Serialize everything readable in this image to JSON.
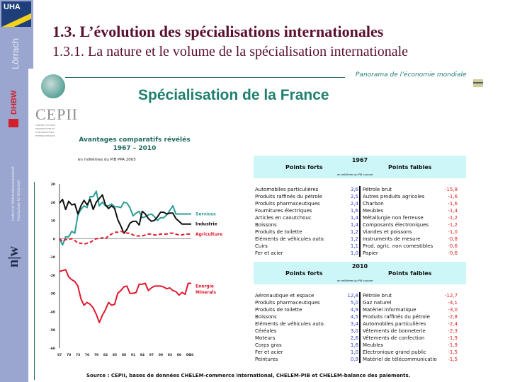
{
  "sidebar": {
    "uha_logo": "UHA",
    "lorrach": "Lörrach",
    "dhbw": "DHBW",
    "institute_line1": "Institut für Wirtschaftswissenschaft",
    "institute_line2": "Hochschule für Wirtschaft",
    "nw_logo": "n|w"
  },
  "header": {
    "title": "1.3. L’évolution des spécialisations internationales",
    "subtitle": "1.3.1. La nature et le volume de la spécialisation internationale"
  },
  "slide": {
    "cepii_logo": "CEPII",
    "cepii_small": "CENTRE D'ETUDES PROSPECTIVES ET D'INFORMATIONS INTERNATIONALES",
    "panorama": "Panorama de l’économie mondiale",
    "main_title": "Spécialisation de la France",
    "chart_title_line1": "Avantages comparatifs révélés",
    "chart_title_line2": "1967 – 2010",
    "chart_unit": "en millièmes du PIB PPA 2005",
    "source": "Source : CEPII, bases de données CHELEM-commerce international, CHELEM-PIB et CHELEM-balance des paiements."
  },
  "tables": [
    {
      "year": "1967",
      "strong_label": "Points forts",
      "weak_label": "Points faibles",
      "unit": "en millièmes du PIB courant",
      "strong": [
        {
          "label": "Automobiles particulières",
          "value": "3,6"
        },
        {
          "label": "Produits raffinés du pétrole",
          "value": "2,5"
        },
        {
          "label": "Produits pharmaceutiques",
          "value": "2,4"
        },
        {
          "label": "Fournitures électriques",
          "value": "1,6"
        },
        {
          "label": "Articles en caoutchouc",
          "value": "1,4"
        },
        {
          "label": "Boissons",
          "value": "1,4"
        },
        {
          "label": "Produits de toilette",
          "value": "1,2"
        },
        {
          "label": "Eléments de véhicules auto.",
          "value": "1,2"
        },
        {
          "label": "Cuirs",
          "value": "1,1"
        },
        {
          "label": "Fer et acier",
          "value": "1,0"
        }
      ],
      "weak": [
        {
          "label": "Pétrole brut",
          "value": "-15,8"
        },
        {
          "label": "Autres produits agricoles",
          "value": "-1,6"
        },
        {
          "label": "Charbon",
          "value": "-1,6"
        },
        {
          "label": "Meubles",
          "value": "-1,4"
        },
        {
          "label": "Métallurgie non ferreuse",
          "value": "-1,2"
        },
        {
          "label": "Composants électroniques",
          "value": "-1,2"
        },
        {
          "label": "Viandes et poissons",
          "value": "-1,0"
        },
        {
          "label": "Instruments de mesure",
          "value": "-0,8"
        },
        {
          "label": "Prod. agric. non comestibles",
          "value": "-0,6"
        },
        {
          "label": "Papier",
          "value": "-0,6"
        }
      ]
    },
    {
      "year": "2010",
      "strong_label": "Points forts",
      "weak_label": "Points faibles",
      "unit": "en millièmes du PIB courant",
      "strong": [
        {
          "label": "Aéronautique et espace",
          "value": "12,8"
        },
        {
          "label": "Produits pharmaceutiques",
          "value": "5,0"
        },
        {
          "label": "Produits de toilette",
          "value": "4,9"
        },
        {
          "label": "Boissons",
          "value": "4,5"
        },
        {
          "label": "Eléments de véhicules auto.",
          "value": "3,4"
        },
        {
          "label": "Céréales",
          "value": "3,0"
        },
        {
          "label": "Moteurs",
          "value": "2,6"
        },
        {
          "label": "Corps gras",
          "value": "1,6"
        },
        {
          "label": "Fer et acier",
          "value": "1,0"
        },
        {
          "label": "Peintures",
          "value": "0,9"
        }
      ],
      "weak": [
        {
          "label": "Pétrole brut",
          "value": "-12,7"
        },
        {
          "label": "Gaz naturel",
          "value": "-4,1"
        },
        {
          "label": "Matériel informatique",
          "value": "-3,0"
        },
        {
          "label": "Produits raffinés du pétrole",
          "value": "-2,8"
        },
        {
          "label": "Automobiles particulières",
          "value": "-2,4"
        },
        {
          "label": "Vêtements de bonneterie",
          "value": "-2,3"
        },
        {
          "label": "Vêtements de confection",
          "value": "-1,9"
        },
        {
          "label": "Meubles",
          "value": "-1,9"
        },
        {
          "label": "Electronique grand public",
          "value": "-1,5"
        },
        {
          "label": "Matériel de télécommunicatio",
          "value": "-1,5"
        }
      ]
    }
  ],
  "chart_data": {
    "type": "line",
    "title": "Avantages comparatifs révélés 1967 – 2010",
    "ylabel": "en millièmes du PIB PPA 2005",
    "ylim": [
      -60,
      30
    ],
    "yticks": [
      30,
      20,
      10,
      0,
      -10,
      -20,
      -30,
      -40,
      -50,
      -60
    ],
    "xticks": [
      "67",
      "70",
      "73",
      "76",
      "79",
      "82",
      "85",
      "88",
      "91",
      "94",
      "97",
      "00",
      "03",
      "06",
      "09",
      "10"
    ],
    "x": [
      1967,
      1968,
      1969,
      1970,
      1971,
      1972,
      1973,
      1974,
      1975,
      1976,
      1977,
      1978,
      1979,
      1980,
      1981,
      1982,
      1983,
      1984,
      1985,
      1986,
      1987,
      1988,
      1989,
      1990,
      1991,
      1992,
      1993,
      1994,
      1995,
      1996,
      1997,
      1998,
      1999,
      2000,
      2001,
      2002,
      2003,
      2004,
      2005,
      2006,
      2007,
      2008,
      2009,
      2010
    ],
    "series": [
      {
        "name": "Services",
        "color": "#2a9d94",
        "values": [
          0,
          -3.5,
          1,
          1,
          4,
          3,
          13,
          16,
          18,
          17,
          23,
          23,
          26,
          18,
          20,
          18,
          18,
          19,
          17.5,
          17.5,
          17,
          20,
          19.5,
          17,
          12.5,
          14,
          15,
          11.5,
          12,
          13,
          13.5,
          12,
          10,
          11.5,
          11.5,
          13,
          15.5,
          18,
          13.5,
          13.5,
          13.5,
          13.5,
          13.5,
          13.5
        ]
      },
      {
        "name": "Industrie",
        "color": "#111111",
        "values": [
          19.5,
          21.5,
          16,
          20.5,
          18.5,
          19,
          13.5,
          18,
          21,
          18.5,
          21.5,
          16,
          20,
          22,
          24,
          18.5,
          16.5,
          18,
          16.5,
          10.5,
          7,
          3,
          5,
          8.5,
          9.5,
          9.5,
          7.5,
          15,
          13.5,
          11,
          9.5,
          10,
          12,
          14.5,
          14.5,
          13.5,
          14,
          14,
          11,
          9.5,
          8,
          8,
          8,
          8
        ]
      },
      {
        "name": "Agriculture",
        "color": "#e0182d",
        "dashed": true,
        "values": [
          0,
          -1.5,
          -0.5,
          -0.5,
          0,
          -1,
          -2.5,
          -2.5,
          -3,
          -2.5,
          -2,
          -1,
          0,
          0,
          0.5,
          0,
          1.5,
          2.5,
          3.5,
          3.5,
          4,
          3.5,
          3,
          3,
          2,
          1.5,
          1.5,
          1.5,
          2,
          2.5,
          2.5,
          2,
          2,
          2.5,
          2.5,
          2.5,
          3,
          3,
          2.5,
          2,
          2,
          2.5,
          2.5,
          2.5
        ]
      },
      {
        "name": "Energie Minerals",
        "color": "#e0182d",
        "values": [
          -18,
          -17.5,
          -17,
          -21,
          -22.5,
          -23.5,
          -26,
          -33,
          -36.5,
          -35,
          -36,
          -38,
          -41.5,
          -46,
          -42,
          -39,
          -35,
          -36.5,
          -36,
          -30,
          -28.5,
          -26.5,
          -26,
          -30,
          -30,
          -29.5,
          -25,
          -25,
          -24.5,
          -28.5,
          -27,
          -26,
          -26,
          -26,
          -26.5,
          -27.5,
          -27,
          -28.5,
          -29,
          -31,
          -29.5,
          -30.5,
          -24.5,
          -24.5
        ]
      }
    ],
    "legend": [
      "Services",
      "Industrie",
      "Agriculture",
      "Energie Minerals"
    ],
    "legend_position": "right inline labels",
    "grid": false
  }
}
